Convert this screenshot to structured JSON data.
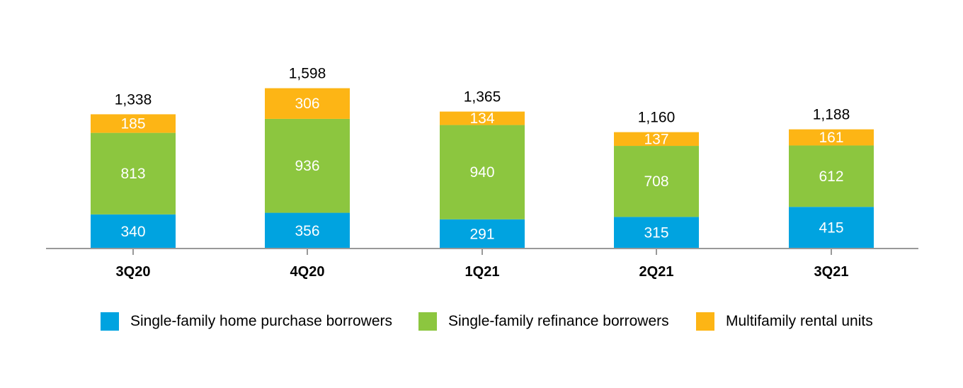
{
  "chart_data": {
    "type": "bar",
    "stacked": true,
    "categories": [
      "3Q20",
      "4Q20",
      "1Q21",
      "2Q21",
      "3Q21"
    ],
    "series": [
      {
        "name": "Single-family home purchase borrowers",
        "color": "#00A3E0",
        "values": [
          340,
          356,
          291,
          315,
          415
        ]
      },
      {
        "name": "Single-family refinance borrowers",
        "color": "#8CC63F",
        "values": [
          813,
          936,
          940,
          708,
          612
        ]
      },
      {
        "name": "Multifamily rental units",
        "color": "#FDB515",
        "values": [
          185,
          306,
          134,
          137,
          161
        ]
      }
    ],
    "totals": [
      "1,338",
      "1,598",
      "1,365",
      "1,160",
      "1,188"
    ],
    "legend_position": "bottom",
    "grid": false
  }
}
